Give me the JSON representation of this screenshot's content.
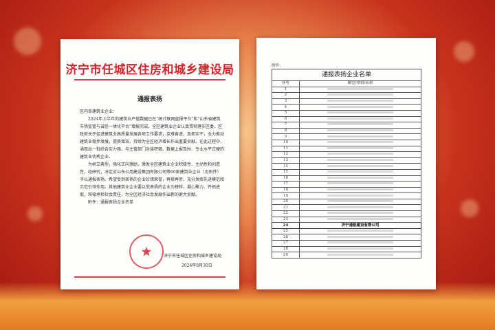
{
  "left_doc": {
    "org": "济宁市任城区住房和城乡建设局",
    "title": "通报表扬",
    "salutation": "区内各建筑业企业：",
    "paragraphs": [
      "2024年上半年的建筑业产值数据已在“统计联网直报平台”和“山东省建筑市场监管与诚信一体化平台”填报完成。全区建筑业企业认真贯彻落实区委、区政府关于促进建筑业高质量发展各项工作要求，克难奋进，真抓实干，全力推动建筑业稳步发展，提质增效，持续为全区经济增长作出重要贡献。在此过程中，涌现出一批综合实力强、与主管部门对接积极、数据上报及时、专业水平过硬的建筑业优秀企业。",
      "为树立典型，强化正向激励，激发全区建筑业企业积极性、主动性和创造性，经研究，决定对山东公用建设集团有限公司等60家建筑业企业（见附件）予以通报表扬。希望受到表扬的企业珍惜荣誉，再接再厉，充分发挥先进模范和示范引领作用。其他建筑业企业要以受表扬的企业为榜样，凝心聚力、开拓进取，积极承担社会责任，为全区经济社会发展作出新的更大贡献。",
      "附件：通报表扬企业名单"
    ],
    "signature": "济宁市任城区住房和城乡建设局",
    "date": "2024年8月30日"
  },
  "right_doc": {
    "attachment_label": "附件：",
    "table_title": "通报表扬企业名单",
    "headers": [
      "序号",
      "单位(项目)名称"
    ],
    "rows": [
      "1",
      "2",
      "3",
      "4",
      "5",
      "6",
      "7",
      "8",
      "9",
      "10",
      "11",
      "12",
      "13",
      "14",
      "15",
      "16",
      "17",
      "18",
      "19",
      "20",
      "21",
      "22",
      "23",
      "24",
      "25",
      "26",
      "27",
      "28",
      "29"
    ],
    "highlight": {
      "index": "24",
      "name": "济宁港航建设有限公司"
    }
  },
  "colors": {
    "org_red": "#d4222a",
    "background": "#c8321c"
  }
}
